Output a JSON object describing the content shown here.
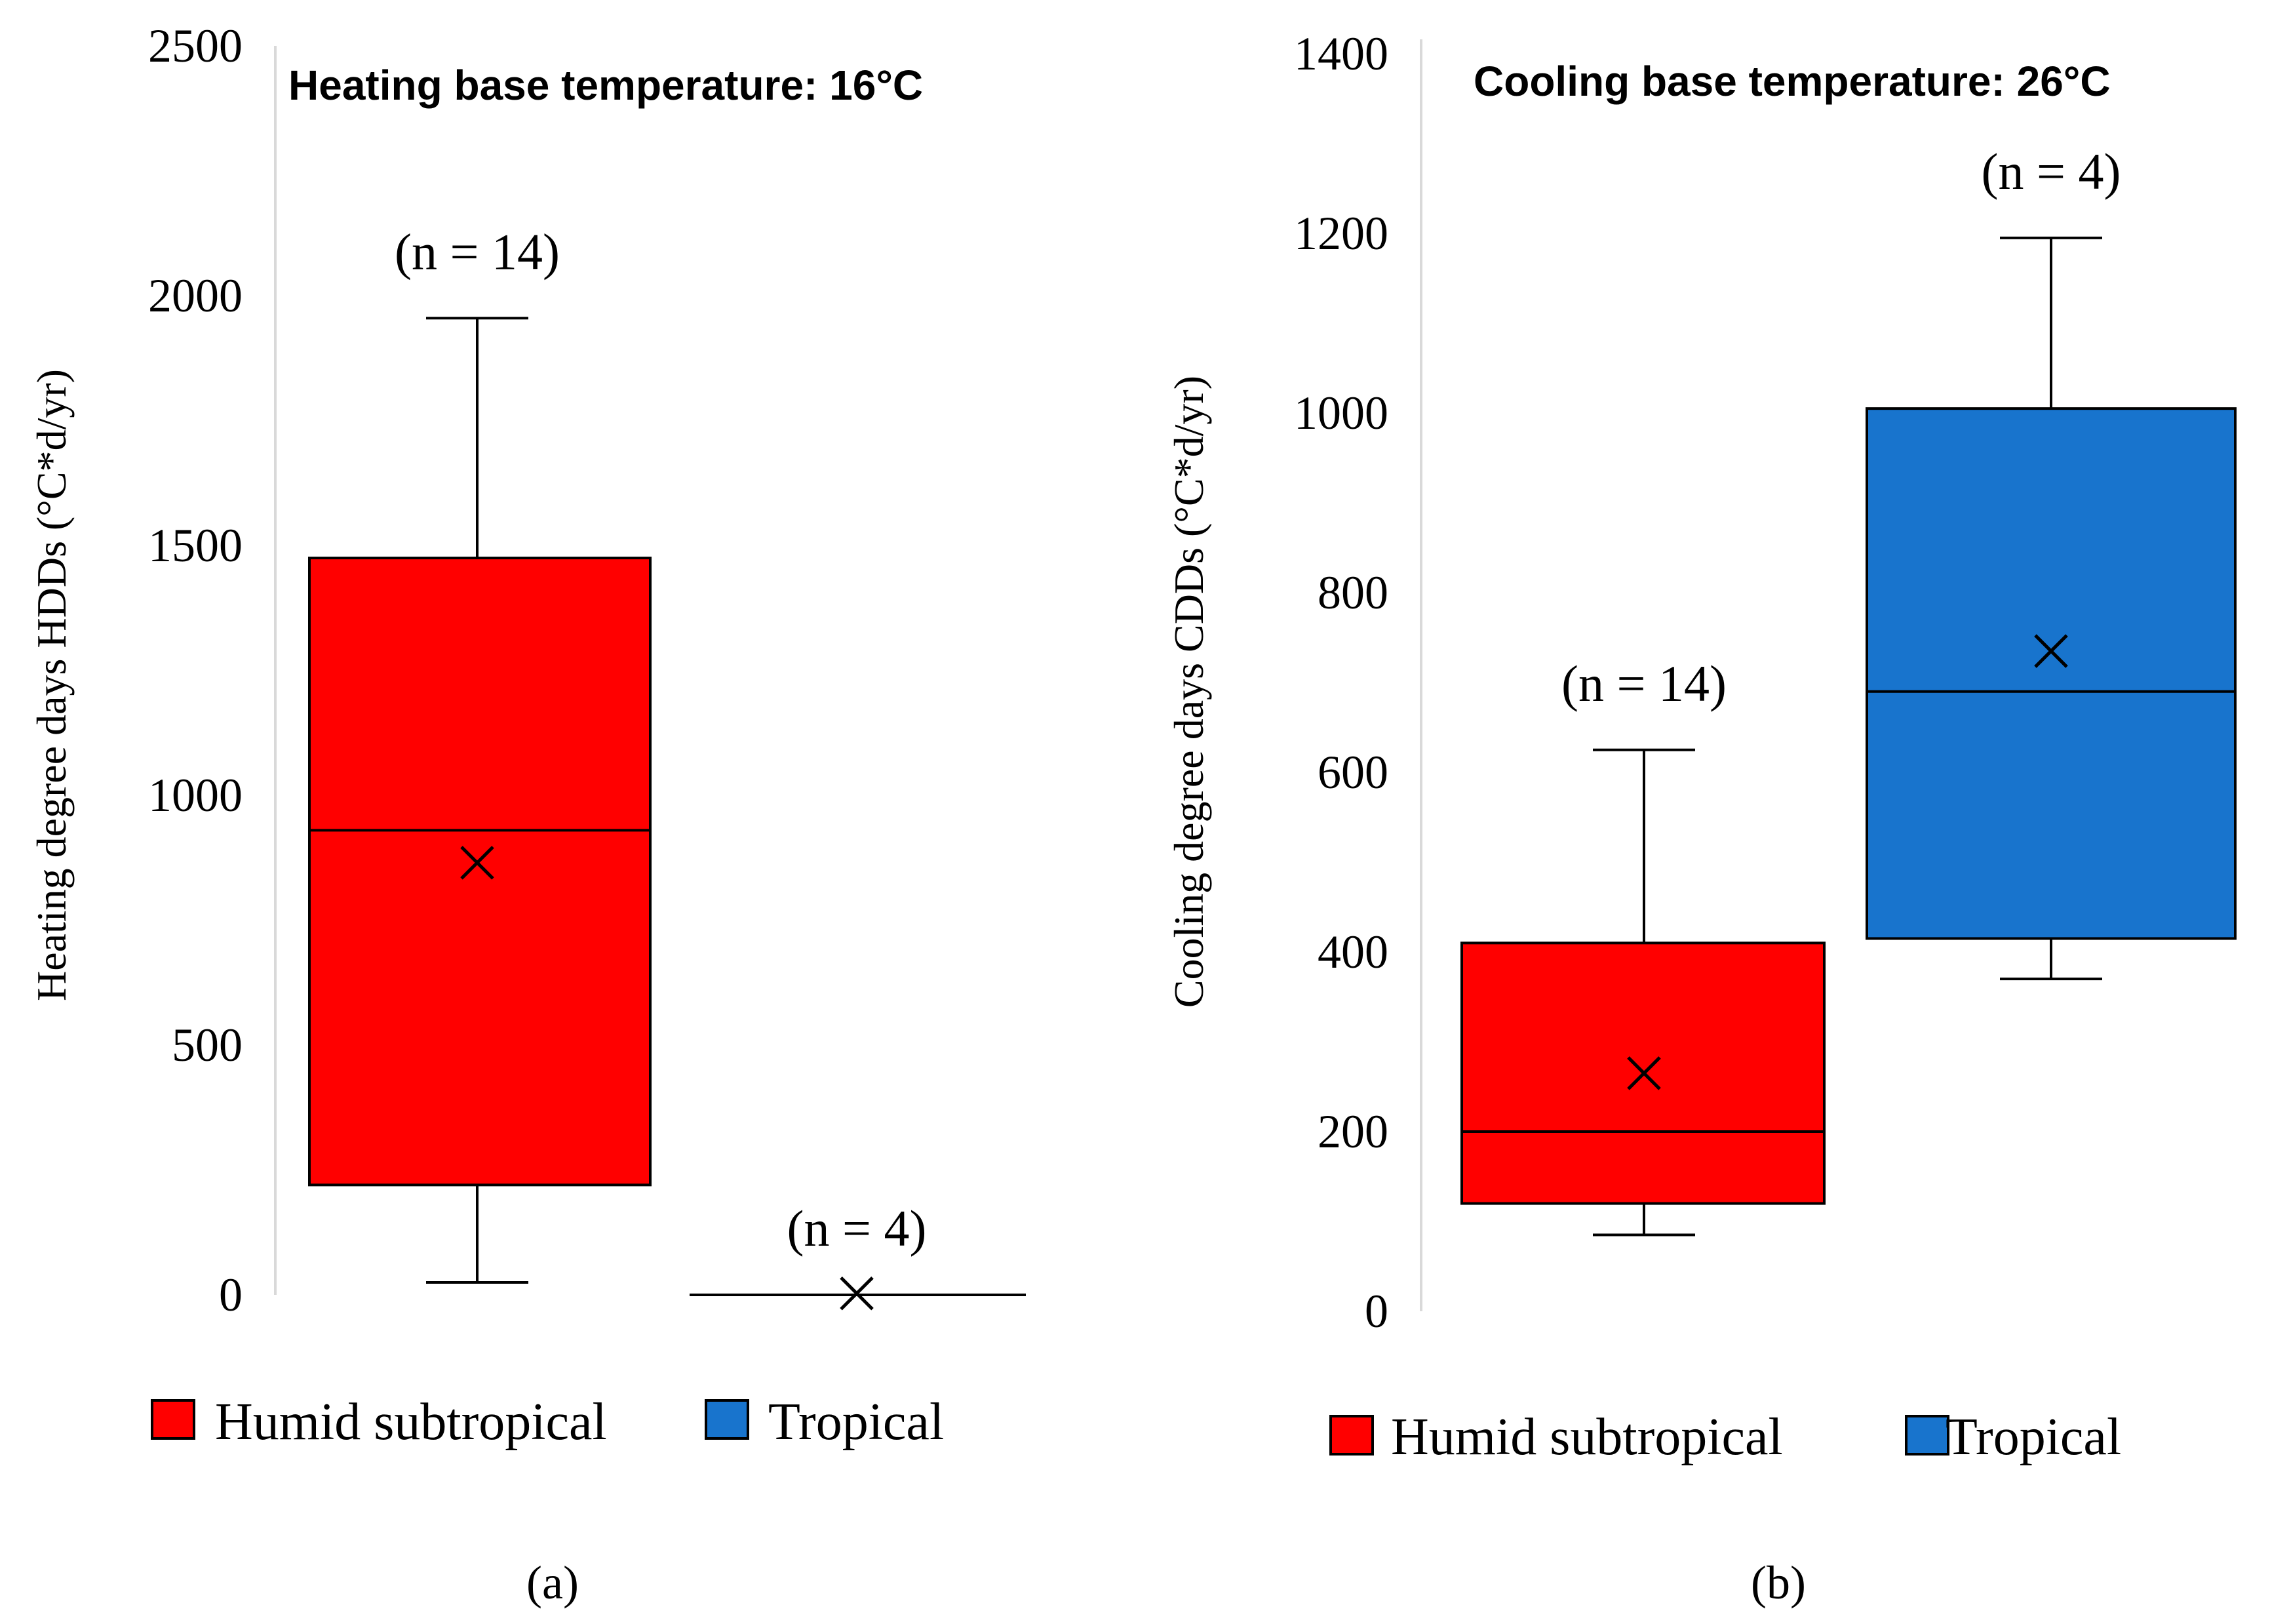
{
  "colors": {
    "humid_subtropical": "#ff0000",
    "tropical": "#1874cd",
    "axis": "#d9d9d9",
    "ink": "#000000"
  },
  "chart_data": [
    {
      "type": "box",
      "panel_label": "(a)",
      "title": "Heating base temperature: 16°C",
      "ylabel": "Heating degree days HDDs (°C*d/yr)",
      "ylim": [
        0,
        2500
      ],
      "yticks": [
        0,
        500,
        1000,
        1500,
        2000,
        2500
      ],
      "legend": [
        "Humid subtropical",
        "Tropical"
      ],
      "legend_position": "bottom",
      "series": [
        {
          "name": "Humid subtropical",
          "color_key": "humid_subtropical",
          "min": 25,
          "q1": 220,
          "median": 930,
          "q3": 1475,
          "max": 1955,
          "mean": 865,
          "n_label": "(n = 14)"
        },
        {
          "name": "Tropical",
          "color_key": "tropical",
          "min": 0,
          "q1": 0,
          "median": 0,
          "q3": 0,
          "max": 0,
          "mean": 3,
          "n_label": "(n = 4)"
        }
      ]
    },
    {
      "type": "box",
      "panel_label": "(b)",
      "title": "Cooling base temperature: 26°C",
      "ylabel": "Cooling  degree days CDDs (°C*d/yr)",
      "ylim": [
        0,
        1400
      ],
      "yticks": [
        0,
        200,
        400,
        600,
        800,
        1000,
        1200,
        1400
      ],
      "legend": [
        "Humid subtropical",
        "Tropical"
      ],
      "legend_position": "bottom",
      "series": [
        {
          "name": "Humid subtropical",
          "color_key": "humid_subtropical",
          "min": 85,
          "q1": 120,
          "median": 200,
          "q3": 410,
          "max": 625,
          "mean": 265,
          "n_label": "(n = 14)"
        },
        {
          "name": "Tropical",
          "color_key": "tropical",
          "min": 370,
          "q1": 415,
          "median": 690,
          "q3": 1005,
          "max": 1195,
          "mean": 735,
          "n_label": "(n = 4)"
        }
      ]
    }
  ]
}
